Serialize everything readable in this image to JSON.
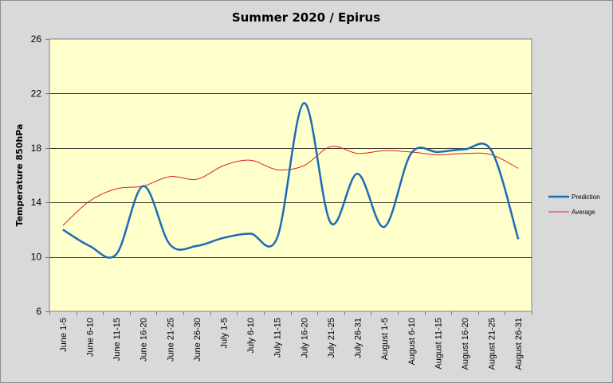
{
  "chart_data": {
    "type": "line",
    "title": "Summer 2020 / Epirus",
    "xlabel": "",
    "ylabel": "Temperature 850hPa",
    "categories": [
      "June 1-5",
      "June 6-10",
      "June 11-15",
      "June 16-20",
      "June 21-25",
      "June 26-30",
      "July 1-5",
      "July 6-10",
      "July 11-15",
      "July 16-20",
      "July 21-25",
      "July 26-31",
      "August 1-5",
      "August 6-10",
      "August 11-15",
      "August 16-20",
      "August 21-25",
      "August 26-31"
    ],
    "yticks": [
      6,
      10,
      14,
      18,
      22,
      26
    ],
    "ylim": [
      6,
      26
    ],
    "grid": true,
    "legend_position": "right",
    "plot_background": "#ffffcc",
    "figure_background": "#d9d9d9",
    "series": [
      {
        "name": "Prediction",
        "color": "#1a6cb8",
        "values": [
          12.0,
          10.8,
          10.2,
          15.2,
          10.9,
          10.8,
          11.4,
          11.7,
          11.4,
          21.3,
          12.5,
          16.1,
          12.2,
          17.6,
          17.7,
          17.9,
          17.8,
          11.3
        ]
      },
      {
        "name": "Average",
        "color": "#e02020",
        "values": [
          12.3,
          14.1,
          15.0,
          15.2,
          15.9,
          15.7,
          16.7,
          17.1,
          16.4,
          16.7,
          18.1,
          17.6,
          17.8,
          17.7,
          17.5,
          17.6,
          17.5,
          16.5
        ]
      }
    ]
  }
}
